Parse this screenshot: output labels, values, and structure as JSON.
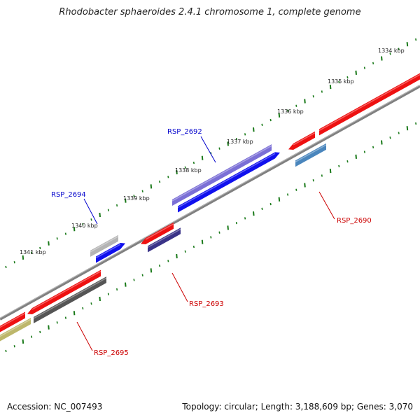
{
  "title": "Rhodobacter sphaeroides 2.4.1 chromosome 1, complete genome",
  "footer": {
    "accession": "Accession: NC_007493",
    "summary": "Topology: circular; Length: 3,188,609 bp; Genes: 3,070"
  },
  "ticks": [
    {
      "label": "1334 kbp"
    },
    {
      "label": "1335 kbp"
    },
    {
      "label": "1336 kbp"
    },
    {
      "label": "1337 kbp"
    },
    {
      "label": "1338 kbp"
    },
    {
      "label": "1339 kbp"
    },
    {
      "label": "1340 kbp"
    },
    {
      "label": "1341 kbp"
    }
  ],
  "gene_labels": [
    {
      "name": "RSP_2692",
      "color": "#0000cc"
    },
    {
      "name": "RSP_2694",
      "color": "#0000cc"
    },
    {
      "name": "RSP_2690",
      "color": "#cc0000"
    },
    {
      "name": "RSP_2693",
      "color": "#cc0000"
    },
    {
      "name": "RSP_2695",
      "color": "#cc0000"
    }
  ],
  "colors": {
    "backbone": "#808080",
    "tick": "#1a7a1a",
    "red_gene": "#ee1111",
    "blue_gene": "#1010ee",
    "purple_gene": "#7b6fd6",
    "navy_gene": "#3a3388",
    "steel_gene": "#4a86bd",
    "gray_gene": "#555555",
    "lightgray_gene": "#b4b4b4",
    "olive_gene": "#bdb76b"
  }
}
